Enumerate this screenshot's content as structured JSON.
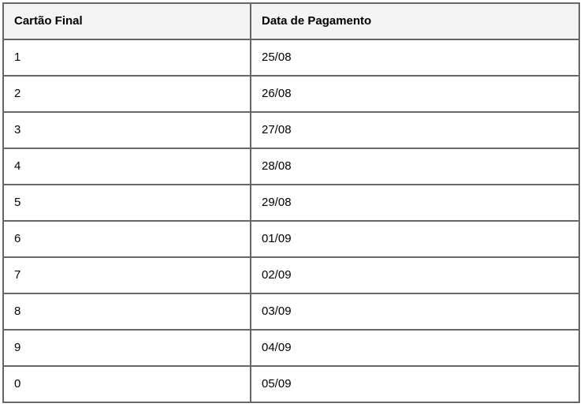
{
  "colors": {
    "border": "#666666",
    "header_background": "#f4f4f4",
    "row_background": "#ffffff",
    "text": "#000000"
  },
  "table": {
    "columns": [
      {
        "label": "Cartão Final"
      },
      {
        "label": "Data de Pagamento"
      }
    ],
    "rows": [
      {
        "cartao": "1",
        "data": "25/08"
      },
      {
        "cartao": "2",
        "data": "26/08"
      },
      {
        "cartao": "3",
        "data": "27/08"
      },
      {
        "cartao": "4",
        "data": "28/08"
      },
      {
        "cartao": "5",
        "data": "29/08"
      },
      {
        "cartao": "6",
        "data": "01/09"
      },
      {
        "cartao": "7",
        "data": "02/09"
      },
      {
        "cartao": "8",
        "data": "03/09"
      },
      {
        "cartao": "9",
        "data": "04/09"
      },
      {
        "cartao": "0",
        "data": "05/09"
      }
    ]
  }
}
